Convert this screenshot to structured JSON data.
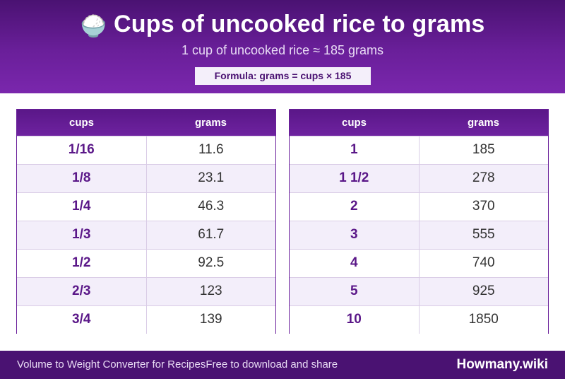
{
  "header": {
    "emoji": "🍚",
    "title": "Cups of uncooked rice to grams",
    "subtitle": "1 cup of uncooked rice ≈ 185 grams",
    "formula": "Formula: grams = cups × 185"
  },
  "table_left": {
    "headers": [
      "cups",
      "grams"
    ],
    "rows": [
      [
        "1/16",
        "11.6"
      ],
      [
        "1/8",
        "23.1"
      ],
      [
        "1/4",
        "46.3"
      ],
      [
        "1/3",
        "61.7"
      ],
      [
        "1/2",
        "92.5"
      ],
      [
        "2/3",
        "123"
      ],
      [
        "3/4",
        "139"
      ]
    ]
  },
  "table_right": {
    "headers": [
      "cups",
      "grams"
    ],
    "rows": [
      [
        "1",
        "185"
      ],
      [
        "1 1/2",
        "278"
      ],
      [
        "2",
        "370"
      ],
      [
        "3",
        "555"
      ],
      [
        "4",
        "740"
      ],
      [
        "5",
        "925"
      ],
      [
        "10",
        "1850"
      ]
    ]
  },
  "footer": {
    "left_text_1": "Volume to Weight Converter for Recipes",
    "left_text_2": "Free to download and share",
    "brand": "Howmany.wiki"
  }
}
